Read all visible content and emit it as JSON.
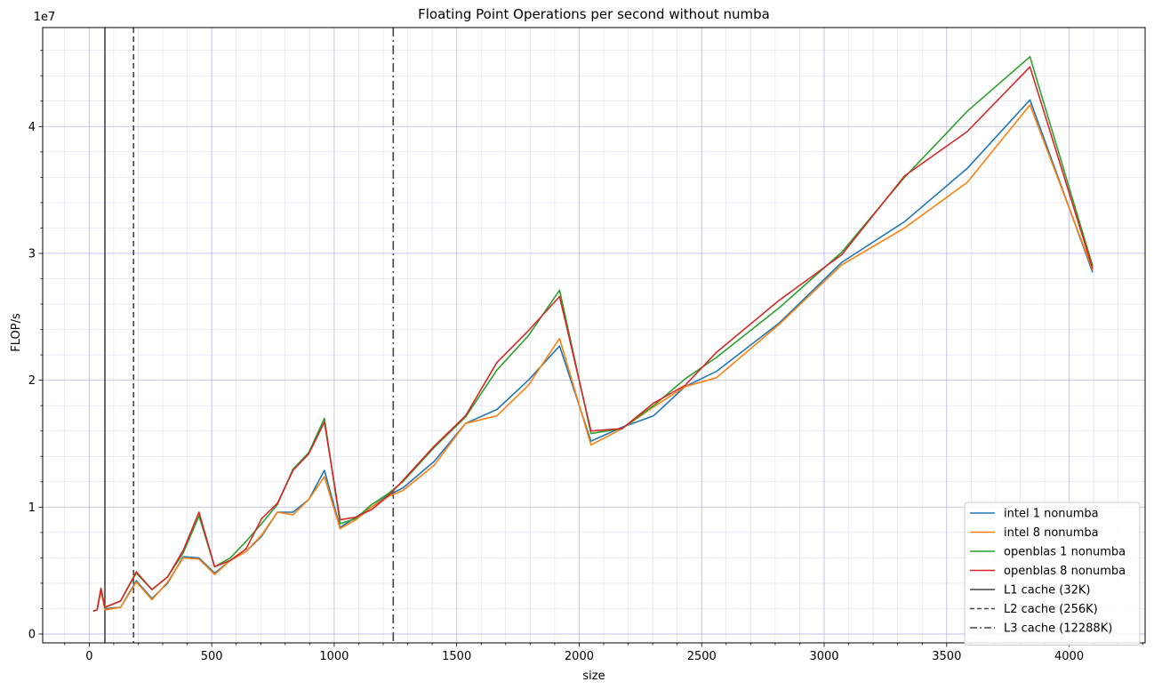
{
  "chart_data": {
    "type": "line",
    "title": "Floating Point Operations per second without numba",
    "xlabel": "size",
    "ylabel": "FLOP/s",
    "y_offset_text": "1e7",
    "y_multiplier": 10000000,
    "xlim": [
      -190,
      4310
    ],
    "ylim": [
      -0.07,
      4.78
    ],
    "x_ticks": [
      0,
      500,
      1000,
      1500,
      2000,
      2500,
      3000,
      3500,
      4000
    ],
    "x_tick_labels": [
      "0",
      "500",
      "1000",
      "1500",
      "2000",
      "2500",
      "3000",
      "3500",
      "4000"
    ],
    "y_ticks": [
      0,
      1,
      2,
      3,
      4
    ],
    "y_tick_labels": [
      "0",
      "1",
      "2",
      "3",
      "4"
    ],
    "grid": true,
    "legend_position": "bottom-right",
    "series": [
      {
        "name": "intel 1 nonumba",
        "color": "#1f77b4",
        "x": [
          16,
          32,
          48,
          64,
          128,
          192,
          256,
          320,
          384,
          448,
          512,
          576,
          640,
          704,
          768,
          832,
          896,
          960,
          1024,
          1088,
          1152,
          1216,
          1280,
          1408,
          1536,
          1664,
          1792,
          1920,
          2048,
          2176,
          2304,
          2432,
          2560,
          2816,
          3072,
          3328,
          3584,
          3840,
          4096
        ],
        "y": [
          0.18,
          0.19,
          0.35,
          0.2,
          0.21,
          0.42,
          0.28,
          0.4,
          0.61,
          0.6,
          0.48,
          0.58,
          0.65,
          0.77,
          0.96,
          0.96,
          1.06,
          1.29,
          0.84,
          0.92,
          1.0,
          1.09,
          1.15,
          1.36,
          1.66,
          1.77,
          2.0,
          2.27,
          1.52,
          1.63,
          1.72,
          1.95,
          2.07,
          2.45,
          2.93,
          3.25,
          3.67,
          4.21,
          2.85
        ]
      },
      {
        "name": "intel 8 nonumba",
        "color": "#ff7f0e",
        "x": [
          16,
          32,
          48,
          64,
          128,
          192,
          256,
          320,
          384,
          448,
          512,
          576,
          640,
          704,
          768,
          832,
          896,
          960,
          1024,
          1088,
          1152,
          1216,
          1280,
          1408,
          1536,
          1664,
          1792,
          1920,
          2048,
          2176,
          2304,
          2432,
          2560,
          2816,
          3072,
          3328,
          3584,
          3840,
          4096
        ],
        "y": [
          0.18,
          0.19,
          0.34,
          0.19,
          0.21,
          0.41,
          0.27,
          0.41,
          0.6,
          0.59,
          0.47,
          0.58,
          0.65,
          0.78,
          0.96,
          0.94,
          1.06,
          1.24,
          0.83,
          0.9,
          1.0,
          1.08,
          1.13,
          1.33,
          1.66,
          1.72,
          1.96,
          2.33,
          1.49,
          1.62,
          1.79,
          1.95,
          2.02,
          2.44,
          2.91,
          3.2,
          3.56,
          4.17,
          2.87
        ]
      },
      {
        "name": "openblas 1 nonumba",
        "color": "#2ca02c",
        "x": [
          16,
          32,
          48,
          64,
          128,
          192,
          256,
          320,
          384,
          448,
          512,
          576,
          640,
          704,
          768,
          832,
          896,
          960,
          1024,
          1088,
          1152,
          1216,
          1280,
          1408,
          1536,
          1664,
          1792,
          1920,
          2048,
          2176,
          2304,
          2432,
          2560,
          2816,
          3072,
          3328,
          3584,
          3840,
          4096
        ],
        "y": [
          0.18,
          0.19,
          0.36,
          0.21,
          0.26,
          0.48,
          0.35,
          0.45,
          0.64,
          0.93,
          0.53,
          0.6,
          0.73,
          0.87,
          1.02,
          1.3,
          1.43,
          1.7,
          0.87,
          0.91,
          1.02,
          1.1,
          1.2,
          1.47,
          1.71,
          2.08,
          2.35,
          2.71,
          1.58,
          1.62,
          1.8,
          2.01,
          2.18,
          2.57,
          3.01,
          3.6,
          4.12,
          4.55,
          2.9
        ]
      },
      {
        "name": "openblas 8 nonumba",
        "color": "#d62728",
        "x": [
          16,
          32,
          48,
          64,
          128,
          192,
          256,
          320,
          384,
          448,
          512,
          576,
          640,
          704,
          768,
          832,
          896,
          960,
          1024,
          1088,
          1152,
          1216,
          1280,
          1408,
          1536,
          1664,
          1792,
          1920,
          2048,
          2176,
          2304,
          2432,
          2560,
          2816,
          3072,
          3328,
          3584,
          3840,
          4096
        ],
        "y": [
          0.18,
          0.19,
          0.36,
          0.21,
          0.26,
          0.49,
          0.35,
          0.45,
          0.66,
          0.96,
          0.53,
          0.58,
          0.67,
          0.91,
          1.03,
          1.29,
          1.42,
          1.67,
          0.9,
          0.92,
          0.98,
          1.08,
          1.21,
          1.48,
          1.72,
          2.14,
          2.39,
          2.66,
          1.6,
          1.62,
          1.82,
          1.96,
          2.22,
          2.63,
          2.99,
          3.61,
          3.96,
          4.47,
          2.88
        ]
      }
    ],
    "reference_lines": [
      {
        "name": "L1 cache (32K)",
        "x": 64,
        "style": "solid",
        "color": "#444444"
      },
      {
        "name": "L2 cache (256K)",
        "x": 181,
        "style": "dashed",
        "color": "#444444"
      },
      {
        "name": "L3 cache (12288K)",
        "x": 1241,
        "style": "dashdot",
        "color": "#444444"
      }
    ]
  }
}
